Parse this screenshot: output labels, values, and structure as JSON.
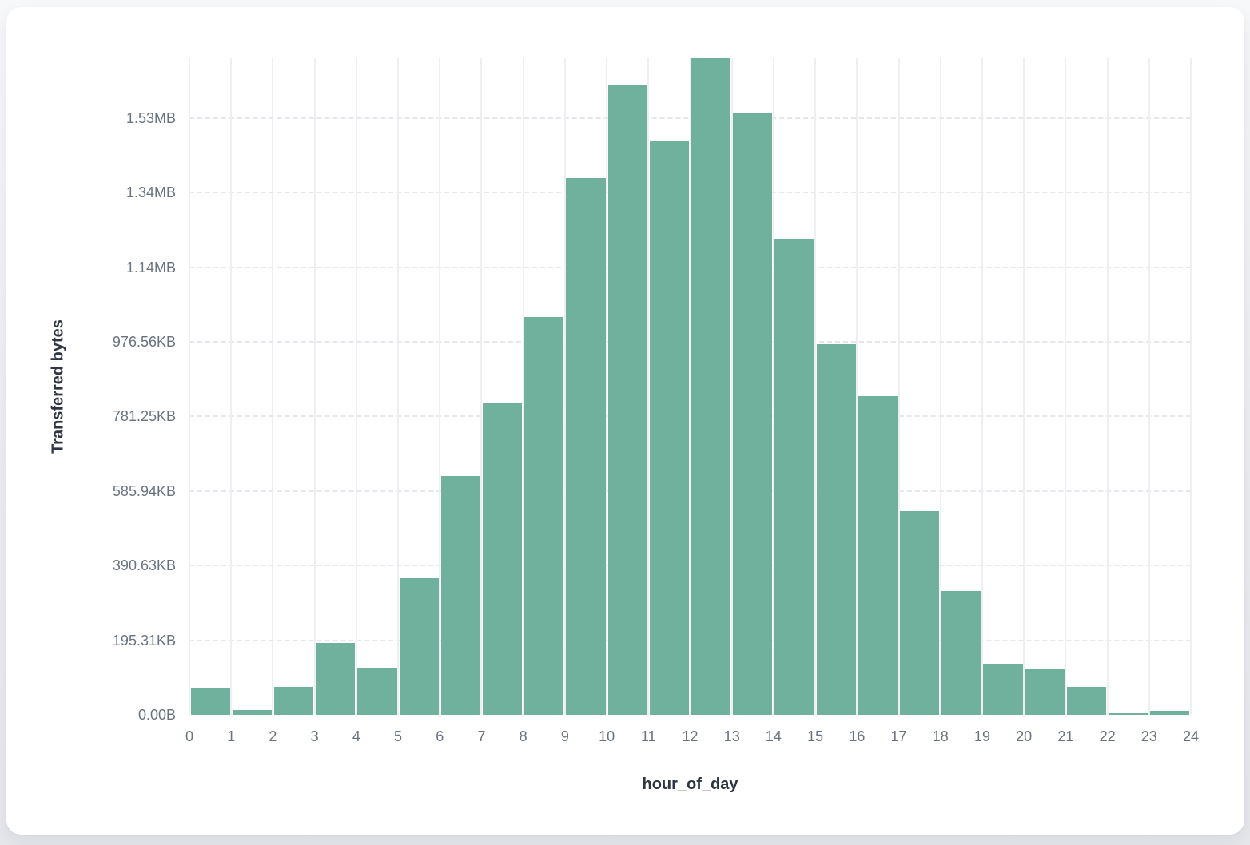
{
  "axes": {
    "y_title": "Transferred bytes",
    "x_title": "hour_of_day"
  },
  "colors": {
    "bar": "#6fb19c",
    "vertical_grid": "#edeff3",
    "horizontal_grid": "#e6e8ee",
    "tick_text": "#6a7280",
    "title_text": "#2f3542",
    "card_bg": "#ffffff"
  },
  "chart_data": {
    "type": "bar",
    "subtype": "histogram",
    "title": "",
    "xlabel": "hour_of_day",
    "ylabel": "Transferred bytes",
    "bin_edges": [
      0,
      1,
      2,
      3,
      4,
      5,
      6,
      7,
      8,
      9,
      10,
      11,
      12,
      13,
      14,
      15,
      16,
      17,
      18,
      19,
      20,
      21,
      22,
      23,
      24
    ],
    "categories": [
      "0",
      "1",
      "2",
      "3",
      "4",
      "5",
      "6",
      "7",
      "8",
      "9",
      "10",
      "11",
      "12",
      "13",
      "14",
      "15",
      "16",
      "17",
      "18",
      "19",
      "20",
      "21",
      "22",
      "23"
    ],
    "values_bytes": [
      70000,
      13500,
      76000,
      193000,
      124000,
      366000,
      640000,
      836000,
      1066000,
      1439000,
      1687000,
      1539000,
      1762000,
      1612000,
      1277000,
      993000,
      854000,
      545000,
      331000,
      137000,
      122000,
      74000,
      4000,
      10000
    ],
    "ylim_bytes": [
      0,
      1762000
    ],
    "y_ticks": [
      {
        "value": 0,
        "label": "0.00B"
      },
      {
        "value": 200000,
        "label": "195.31KB"
      },
      {
        "value": 400000,
        "label": "390.63KB"
      },
      {
        "value": 600000,
        "label": "585.94KB"
      },
      {
        "value": 800000,
        "label": "781.25KB"
      },
      {
        "value": 1000000,
        "label": "976.56KB"
      },
      {
        "value": 1200000,
        "label": "1.14MB"
      },
      {
        "value": 1400000,
        "label": "1.34MB"
      },
      {
        "value": 1600000,
        "label": "1.53MB"
      }
    ],
    "x_tick_labels": [
      "0",
      "1",
      "2",
      "3",
      "4",
      "5",
      "6",
      "7",
      "8",
      "9",
      "10",
      "11",
      "12",
      "13",
      "14",
      "15",
      "16",
      "17",
      "18",
      "19",
      "20",
      "21",
      "22",
      "23",
      "24"
    ],
    "grid": "on",
    "legend": "none"
  }
}
